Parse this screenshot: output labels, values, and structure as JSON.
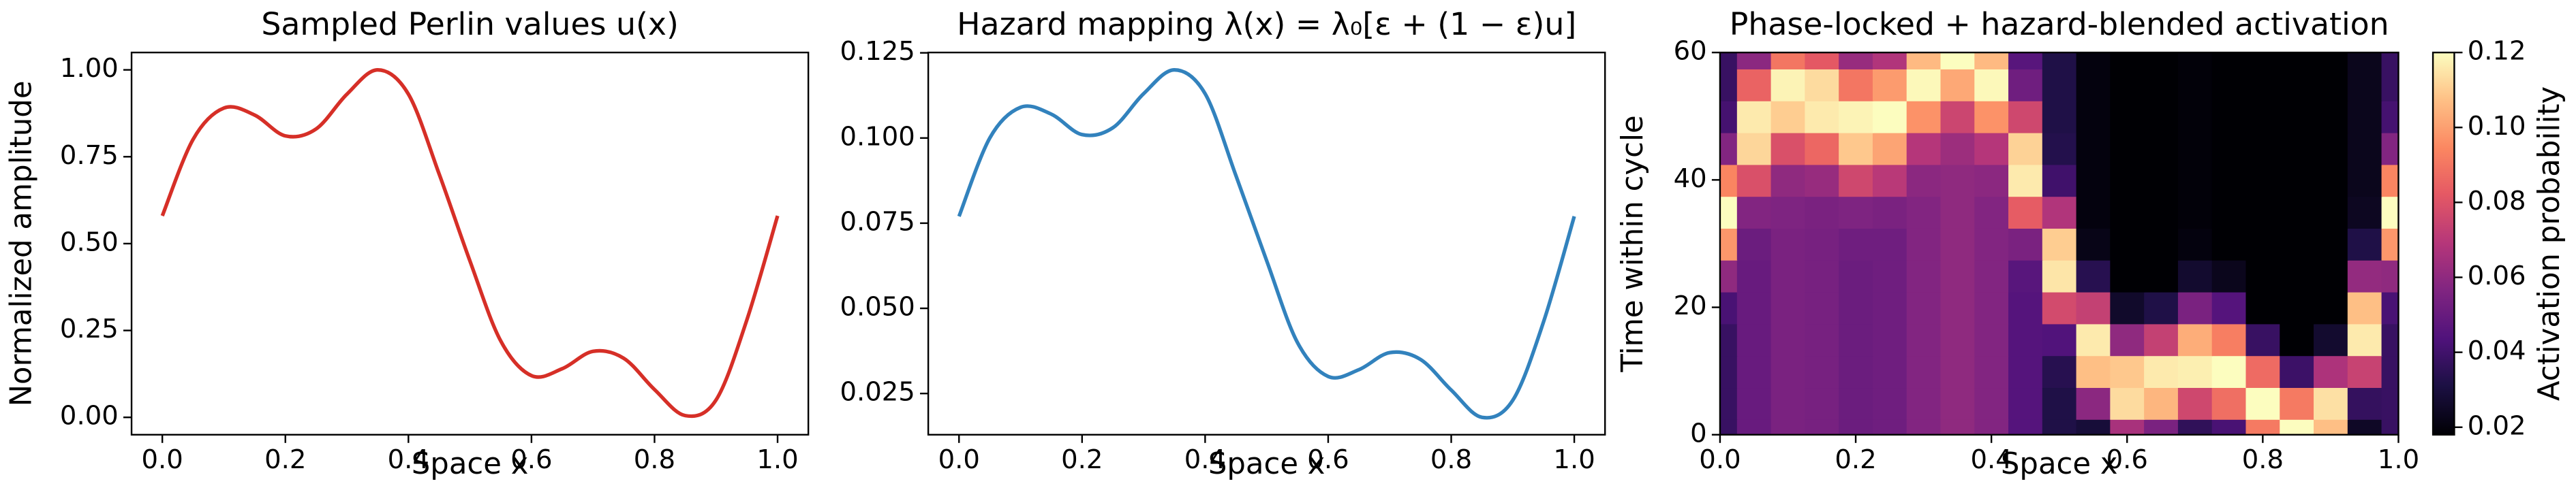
{
  "chart_data": [
    {
      "type": "line",
      "title": "Sampled Perlin values u(x)",
      "xlabel": "Space x",
      "ylabel": "Normalized amplitude",
      "x": [
        0,
        0.05,
        0.1,
        0.15,
        0.2,
        0.25,
        0.3,
        0.35,
        0.4,
        0.45,
        0.5,
        0.55,
        0.6,
        0.65,
        0.7,
        0.75,
        0.8,
        0.85,
        0.9,
        0.95,
        1.0
      ],
      "series": [
        {
          "color": "#d62f27",
          "values": [
            0.58,
            0.8,
            0.89,
            0.87,
            0.81,
            0.83,
            0.93,
            1.0,
            0.93,
            0.7,
            0.45,
            0.22,
            0.12,
            0.14,
            0.19,
            0.17,
            0.08,
            0.005,
            0.05,
            0.28,
            0.58
          ]
        }
      ],
      "xlim": [
        -0.05,
        1.05
      ],
      "ylim": [
        -0.05,
        1.05
      ],
      "xticks": [
        {
          "value": 0,
          "label": "0.0"
        },
        0.2,
        0.4,
        0.6,
        0.8,
        {
          "value": 1,
          "label": "1.0"
        }
      ],
      "yticks": [
        {
          "value": 0,
          "label": "0.00"
        },
        0.25,
        {
          "value": 0.5,
          "label": "0.50"
        },
        0.75,
        {
          "value": 1,
          "label": "1.00"
        }
      ]
    },
    {
      "type": "line",
      "title": "Hazard mapping λ(x) = λ₀[ε + (1 − ε)u]",
      "xlabel": "Space x",
      "x": [
        0,
        0.05,
        0.1,
        0.15,
        0.2,
        0.25,
        0.3,
        0.35,
        0.4,
        0.45,
        0.5,
        0.55,
        0.6,
        0.65,
        0.7,
        0.75,
        0.8,
        0.85,
        0.9,
        0.95,
        1.0
      ],
      "series": [
        {
          "color": "#3282bd",
          "values": [
            0.077,
            0.1,
            0.109,
            0.107,
            0.101,
            0.103,
            0.113,
            0.12,
            0.113,
            0.089,
            0.064,
            0.04,
            0.03,
            0.032,
            0.037,
            0.035,
            0.026,
            0.018,
            0.023,
            0.046,
            0.077
          ]
        }
      ],
      "xlim": [
        -0.05,
        1.05
      ],
      "ylim": [
        0.0129,
        0.1251
      ],
      "xticks": [
        {
          "value": 0,
          "label": "0.0"
        },
        0.2,
        0.4,
        0.6,
        0.8,
        {
          "value": 1,
          "label": "1.0"
        }
      ],
      "yticks": [
        0.025,
        {
          "value": 0.05,
          "label": "0.050"
        },
        0.075,
        {
          "value": 0.1,
          "label": "0.100"
        },
        0.125
      ]
    },
    {
      "type": "heatmap",
      "title": "Phase-locked + hazard-blended activation",
      "xlabel": "Space x",
      "ylabel": "Time within cycle",
      "x": [
        0,
        0.05,
        0.1,
        0.15,
        0.2,
        0.25,
        0.3,
        0.35,
        0.4,
        0.45,
        0.5,
        0.55,
        0.6,
        0.65,
        0.7,
        0.75,
        0.8,
        0.85,
        0.9,
        0.95,
        1.0
      ],
      "y": [
        0,
        5,
        10,
        15,
        20,
        25,
        30,
        35,
        40,
        45,
        50,
        55,
        60
      ],
      "z": [
        [
          0.038,
          0.05,
          0.055,
          0.054,
          0.051,
          0.052,
          0.057,
          0.06,
          0.057,
          0.045,
          0.032,
          0.029,
          0.066,
          0.055,
          0.036,
          0.042,
          0.091,
          0.12,
          0.107,
          0.025,
          0.038
        ],
        [
          0.038,
          0.05,
          0.055,
          0.054,
          0.051,
          0.052,
          0.057,
          0.06,
          0.057,
          0.045,
          0.032,
          0.059,
          0.113,
          0.105,
          0.076,
          0.088,
          0.12,
          0.091,
          0.114,
          0.037,
          0.038
        ],
        [
          0.038,
          0.05,
          0.055,
          0.054,
          0.051,
          0.052,
          0.057,
          0.06,
          0.057,
          0.045,
          0.034,
          0.107,
          0.109,
          0.116,
          0.117,
          0.12,
          0.087,
          0.039,
          0.067,
          0.074,
          0.038
        ],
        [
          0.038,
          0.05,
          0.055,
          0.054,
          0.051,
          0.052,
          0.057,
          0.06,
          0.057,
          0.045,
          0.044,
          0.116,
          0.06,
          0.073,
          0.103,
          0.092,
          0.038,
          0.015,
          0.027,
          0.116,
          0.038
        ],
        [
          0.042,
          0.05,
          0.055,
          0.054,
          0.051,
          0.052,
          0.057,
          0.06,
          0.057,
          0.045,
          0.077,
          0.073,
          0.026,
          0.032,
          0.055,
          0.045,
          0.017,
          0.009,
          0.014,
          0.107,
          0.042
        ],
        [
          0.06,
          0.05,
          0.055,
          0.054,
          0.051,
          0.052,
          0.057,
          0.06,
          0.057,
          0.046,
          0.115,
          0.034,
          0.016,
          0.018,
          0.027,
          0.023,
          0.013,
          0.009,
          0.012,
          0.061,
          0.06
        ],
        [
          0.098,
          0.051,
          0.055,
          0.054,
          0.052,
          0.052,
          0.057,
          0.06,
          0.057,
          0.055,
          0.11,
          0.022,
          0.015,
          0.016,
          0.02,
          0.018,
          0.013,
          0.009,
          0.012,
          0.032,
          0.098
        ],
        [
          0.12,
          0.057,
          0.056,
          0.055,
          0.056,
          0.055,
          0.057,
          0.06,
          0.057,
          0.083,
          0.068,
          0.02,
          0.015,
          0.016,
          0.019,
          0.018,
          0.013,
          0.009,
          0.012,
          0.024,
          0.12
        ],
        [
          0.094,
          0.079,
          0.06,
          0.062,
          0.076,
          0.07,
          0.059,
          0.06,
          0.059,
          0.116,
          0.04,
          0.02,
          0.015,
          0.016,
          0.019,
          0.018,
          0.013,
          0.009,
          0.012,
          0.023,
          0.094
        ],
        [
          0.057,
          0.112,
          0.079,
          0.086,
          0.109,
          0.101,
          0.069,
          0.063,
          0.069,
          0.111,
          0.033,
          0.02,
          0.015,
          0.016,
          0.019,
          0.018,
          0.013,
          0.009,
          0.012,
          0.023,
          0.057
        ],
        [
          0.041,
          0.116,
          0.11,
          0.116,
          0.118,
          0.12,
          0.097,
          0.075,
          0.097,
          0.076,
          0.032,
          0.02,
          0.015,
          0.016,
          0.019,
          0.018,
          0.013,
          0.009,
          0.012,
          0.023,
          0.041
        ],
        [
          0.038,
          0.085,
          0.118,
          0.113,
          0.09,
          0.099,
          0.119,
          0.102,
          0.119,
          0.052,
          0.032,
          0.02,
          0.015,
          0.016,
          0.019,
          0.018,
          0.013,
          0.009,
          0.012,
          0.023,
          0.038
        ],
        [
          0.038,
          0.059,
          0.09,
          0.082,
          0.062,
          0.068,
          0.106,
          0.12,
          0.106,
          0.046,
          0.032,
          0.02,
          0.015,
          0.016,
          0.019,
          0.018,
          0.013,
          0.009,
          0.012,
          0.023,
          0.038
        ]
      ],
      "xlim": [
        0,
        1
      ],
      "ylim": [
        0,
        60
      ],
      "xticks": [
        {
          "value": 0,
          "label": "0.0"
        },
        0.2,
        0.4,
        0.6,
        0.8,
        {
          "value": 1,
          "label": "1.0"
        }
      ],
      "yticks": [
        0,
        20,
        40,
        60
      ],
      "colormap": "magma",
      "colorbar": {
        "label": "Activation probability",
        "lim": [
          0.018,
          0.12
        ],
        "ticks": [
          0.02,
          0.04,
          0.06,
          0.08,
          {
            "value": 0.1,
            "label": "0.10"
          },
          0.12
        ]
      }
    }
  ]
}
